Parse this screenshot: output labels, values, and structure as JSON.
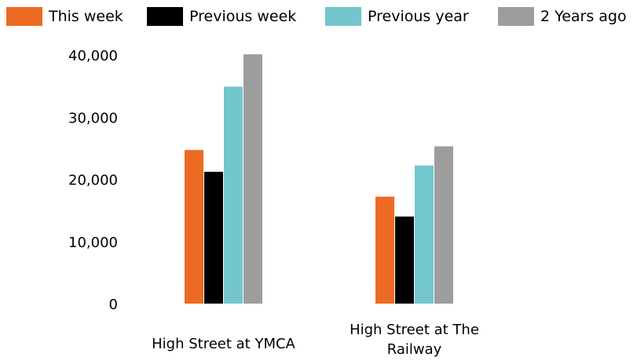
{
  "chart_data": {
    "type": "bar",
    "title": "",
    "xlabel": "",
    "ylabel": "",
    "categories": [
      [
        "High Street at YMCA"
      ],
      [
        "High Street at The",
        "Railway"
      ]
    ],
    "series": [
      {
        "name": "This week",
        "color": "#ec6a22",
        "values": [
          24700,
          17200
        ]
      },
      {
        "name": "Previous week",
        "color": "#000000",
        "values": [
          21200,
          14000
        ]
      },
      {
        "name": "Previous year",
        "color": "#72c6cc",
        "values": [
          34900,
          22200
        ]
      },
      {
        "name": "2 Years ago",
        "color": "#9d9d9d",
        "values": [
          40100,
          25300
        ]
      }
    ],
    "ylim": [
      0,
      40000
    ],
    "yticks": [
      "0",
      "10,000",
      "20,000",
      "30,000",
      "40,000"
    ],
    "grid": false,
    "legend_position": "top"
  }
}
